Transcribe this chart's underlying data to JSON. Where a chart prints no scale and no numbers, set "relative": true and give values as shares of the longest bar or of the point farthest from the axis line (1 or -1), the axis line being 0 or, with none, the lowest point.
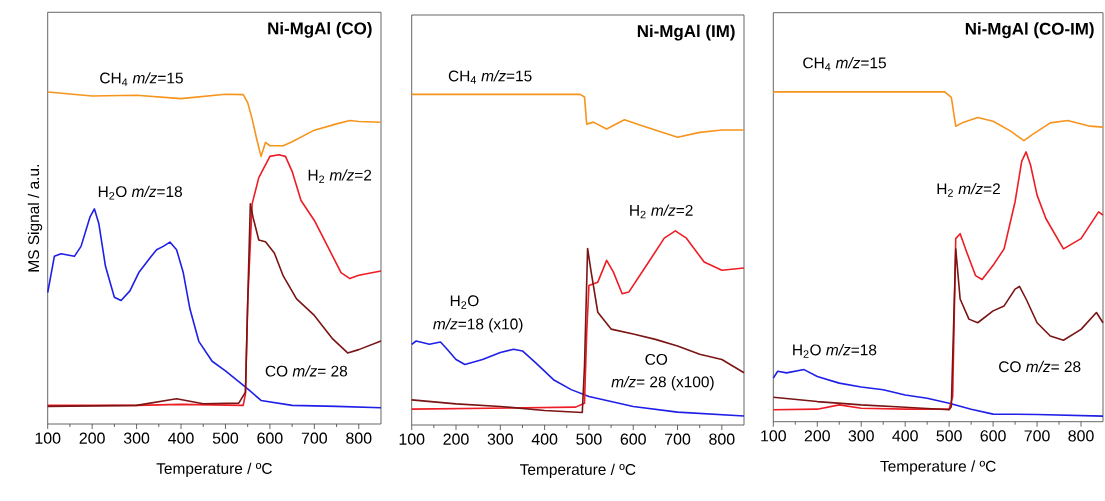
{
  "chart_data": [
    {
      "type": "line",
      "title": "Ni-MgAl (CO)",
      "xlabel": "Temperature / ºC",
      "ylabel": "MS Signal / a.u.",
      "relative": true,
      "xlim": [
        100,
        850
      ],
      "xticks": [
        100,
        200,
        300,
        400,
        500,
        600,
        700,
        800
      ],
      "series": [
        {
          "name": "CH$_{4}$ *m/z*=15",
          "color": "#f7941d",
          "x": [
            100,
            200,
            300,
            400,
            500,
            540,
            550,
            560,
            570,
            580,
            590,
            600,
            630,
            650,
            700,
            750,
            780,
            800,
            850
          ],
          "values": [
            1.0,
            0.988,
            0.99,
            0.98,
            0.993,
            0.992,
            0.968,
            0.919,
            0.86,
            0.806,
            0.848,
            0.838,
            0.838,
            0.85,
            0.885,
            0.904,
            0.914,
            0.911,
            0.909
          ]
        },
        {
          "name": "H$_{2}$O *m/z*=18",
          "color": "#1f1fe8",
          "x": [
            100,
            115,
            130,
            160,
            175,
            195,
            205,
            215,
            230,
            250,
            265,
            285,
            305,
            330,
            345,
            360,
            375,
            390,
            405,
            420,
            440,
            470,
            500,
            550,
            580,
            650,
            750,
            850
          ],
          "values": [
            0.396,
            0.505,
            0.513,
            0.505,
            0.535,
            0.623,
            0.648,
            0.604,
            0.475,
            0.382,
            0.372,
            0.401,
            0.456,
            0.5,
            0.525,
            0.535,
            0.548,
            0.525,
            0.456,
            0.347,
            0.249,
            0.189,
            0.16,
            0.106,
            0.071,
            0.056,
            0.053,
            0.049
          ]
        },
        {
          "name": "H$_{2}$ *m/z*=2",
          "color": "#ee1c24",
          "x": [
            100,
            300,
            400,
            540,
            545,
            550,
            560,
            575,
            600,
            620,
            635,
            650,
            670,
            700,
            730,
            760,
            780,
            800,
            850
          ],
          "values": [
            0.056,
            0.056,
            0.059,
            0.056,
            0.091,
            0.367,
            0.663,
            0.742,
            0.806,
            0.811,
            0.806,
            0.761,
            0.673,
            0.613,
            0.535,
            0.456,
            0.438,
            0.448,
            0.461
          ]
        },
        {
          "name": "CO *m/z*= 28",
          "color": "#7b1414",
          "x": [
            100,
            300,
            390,
            450,
            530,
            545,
            552,
            556,
            562,
            575,
            590,
            610,
            630,
            660,
            700,
            740,
            775,
            800,
            850
          ],
          "values": [
            0.053,
            0.056,
            0.076,
            0.061,
            0.063,
            0.096,
            0.465,
            0.663,
            0.623,
            0.554,
            0.549,
            0.515,
            0.446,
            0.377,
            0.327,
            0.258,
            0.214,
            0.224,
            0.25
          ]
        }
      ]
    },
    {
      "type": "line",
      "title": "Ni-MgAl (IM)",
      "xlabel": "Temperature / ºC",
      "relative": true,
      "xlim": [
        100,
        850
      ],
      "xticks": [
        100,
        200,
        300,
        400,
        500,
        600,
        700,
        800
      ],
      "series": [
        {
          "name": "CH$_{4}$ *m/z*=15",
          "color": "#f7941d",
          "x": [
            100,
            480,
            490,
            495,
            510,
            540,
            580,
            620,
            700,
            750,
            800,
            850
          ],
          "values": [
            1.0,
            1.0,
            0.992,
            0.91,
            0.916,
            0.895,
            0.923,
            0.905,
            0.87,
            0.885,
            0.892,
            0.892
          ]
        },
        {
          "name": "H$_{2}$O",
          "color": "#1f1fe8",
          "x": [
            100,
            110,
            140,
            165,
            180,
            200,
            220,
            260,
            300,
            330,
            350,
            380,
            420,
            460,
            500,
            600,
            700,
            850
          ],
          "values": [
            0.244,
            0.254,
            0.244,
            0.251,
            0.229,
            0.198,
            0.183,
            0.198,
            0.219,
            0.229,
            0.224,
            0.188,
            0.137,
            0.107,
            0.086,
            0.056,
            0.039,
            0.027
          ]
        },
        {
          "name": "H$_{2}$ *m/z*=2",
          "color": "#ee1c24",
          "x": [
            100,
            470,
            490,
            495,
            500,
            520,
            540,
            555,
            575,
            590,
            630,
            670,
            695,
            720,
            760,
            800,
            850
          ],
          "values": [
            0.048,
            0.054,
            0.066,
            0.28,
            0.422,
            0.432,
            0.498,
            0.463,
            0.397,
            0.402,
            0.483,
            0.565,
            0.587,
            0.565,
            0.493,
            0.468,
            0.475
          ]
        },
        {
          "name": "CO",
          "color": "#7b1414",
          "x": [
            100,
            200,
            300,
            400,
            485,
            490,
            497,
            505,
            520,
            550,
            600,
            650,
            700,
            750,
            800,
            850
          ],
          "values": [
            0.076,
            0.064,
            0.056,
            0.044,
            0.038,
            0.178,
            0.534,
            0.463,
            0.341,
            0.29,
            0.275,
            0.259,
            0.239,
            0.214,
            0.198,
            0.158
          ]
        }
      ],
      "annotations": [
        "*m/z*=18 (x10)",
        "*m/z*= 28 (x100)"
      ]
    },
    {
      "type": "line",
      "title": "Ni-MgAl (CO-IM)",
      "xlabel": "Temperature / ºC",
      "relative": true,
      "xlim": [
        100,
        850
      ],
      "xticks": [
        100,
        200,
        300,
        400,
        500,
        600,
        700,
        800
      ],
      "series": [
        {
          "name": "CH$_{4}$ *m/z*=15",
          "color": "#f7941d",
          "x": [
            100,
            490,
            505,
            515,
            530,
            565,
            600,
            640,
            670,
            690,
            730,
            770,
            820,
            850
          ],
          "values": [
            1.0,
            1.0,
            0.983,
            0.896,
            0.906,
            0.922,
            0.911,
            0.881,
            0.852,
            0.871,
            0.906,
            0.913,
            0.896,
            0.893
          ]
        },
        {
          "name": "H$_{2}$O *m/z*=18",
          "color": "#1f1fe8",
          "x": [
            100,
            110,
            130,
            170,
            200,
            250,
            300,
            350,
            400,
            450,
            500,
            550,
            600,
            700,
            850
          ],
          "values": [
            0.132,
            0.153,
            0.148,
            0.158,
            0.137,
            0.117,
            0.105,
            0.097,
            0.081,
            0.071,
            0.056,
            0.038,
            0.023,
            0.022,
            0.017
          ]
        },
        {
          "name": "H$_{2}$ *m/z*=2",
          "color": "#ee1c24",
          "x": [
            100,
            200,
            250,
            300,
            400,
            500,
            508,
            515,
            525,
            540,
            560,
            575,
            600,
            625,
            650,
            665,
            675,
            685,
            700,
            720,
            760,
            800,
            840,
            850
          ],
          "values": [
            0.036,
            0.038,
            0.051,
            0.041,
            0.038,
            0.038,
            0.076,
            0.555,
            0.57,
            0.514,
            0.443,
            0.431,
            0.474,
            0.524,
            0.667,
            0.789,
            0.818,
            0.779,
            0.687,
            0.616,
            0.524,
            0.555,
            0.636,
            0.626
          ]
        },
        {
          "name": "CO *m/z*= 28",
          "color": "#7b1414",
          "x": [
            100,
            200,
            300,
            400,
            500,
            505,
            515,
            525,
            545,
            565,
            600,
            625,
            650,
            660,
            675,
            700,
            730,
            760,
            800,
            835,
            850
          ],
          "values": [
            0.074,
            0.061,
            0.051,
            0.044,
            0.036,
            0.046,
            0.524,
            0.372,
            0.311,
            0.3,
            0.336,
            0.351,
            0.402,
            0.41,
            0.372,
            0.3,
            0.26,
            0.247,
            0.28,
            0.331,
            0.3
          ]
        }
      ]
    }
  ]
}
